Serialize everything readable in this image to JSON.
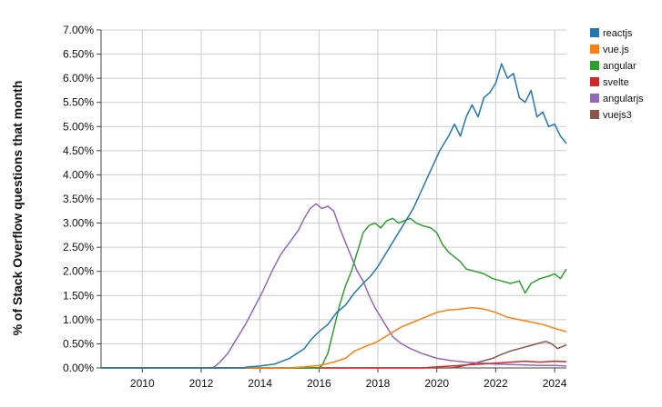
{
  "chart_data": {
    "type": "line",
    "title": "",
    "xlabel": "",
    "ylabel": "% of Stack Overflow questions that month",
    "xlim": [
      2008.6,
      2024.4
    ],
    "ylim": [
      0,
      7
    ],
    "x_ticks": [
      2010,
      2012,
      2014,
      2016,
      2018,
      2020,
      2022,
      2024
    ],
    "x_tick_labels": [
      "2010",
      "2012",
      "2014",
      "2016",
      "2018",
      "2020",
      "2022",
      "2024"
    ],
    "y_ticks": [
      0,
      0.5,
      1,
      1.5,
      2,
      2.5,
      3,
      3.5,
      4,
      4.5,
      5,
      5.5,
      6,
      6.5,
      7
    ],
    "y_tick_labels": [
      "0.00%",
      "0.50%",
      "1.00%",
      "1.50%",
      "2.00%",
      "2.50%",
      "3.00%",
      "3.50%",
      "4.00%",
      "4.50%",
      "5.00%",
      "5.50%",
      "6.00%",
      "6.50%",
      "7.00%"
    ],
    "grid": true,
    "legend_position": "right",
    "series": [
      {
        "name": "reactjs",
        "color": "#1f77b4",
        "points": [
          [
            2008.6,
            0.0
          ],
          [
            2013.4,
            0.0
          ],
          [
            2013.6,
            0.02
          ],
          [
            2014.0,
            0.04
          ],
          [
            2014.5,
            0.08
          ],
          [
            2015.0,
            0.2
          ],
          [
            2015.5,
            0.4
          ],
          [
            2015.75,
            0.6
          ],
          [
            2016.0,
            0.75
          ],
          [
            2016.3,
            0.9
          ],
          [
            2016.6,
            1.15
          ],
          [
            2016.9,
            1.3
          ],
          [
            2017.2,
            1.55
          ],
          [
            2017.5,
            1.75
          ],
          [
            2017.75,
            1.9
          ],
          [
            2018.0,
            2.1
          ],
          [
            2018.3,
            2.4
          ],
          [
            2018.6,
            2.7
          ],
          [
            2018.9,
            3.0
          ],
          [
            2019.2,
            3.3
          ],
          [
            2019.5,
            3.7
          ],
          [
            2019.8,
            4.1
          ],
          [
            2020.1,
            4.5
          ],
          [
            2020.4,
            4.8
          ],
          [
            2020.6,
            5.05
          ],
          [
            2020.8,
            4.8
          ],
          [
            2021.0,
            5.2
          ],
          [
            2021.2,
            5.45
          ],
          [
            2021.4,
            5.2
          ],
          [
            2021.6,
            5.6
          ],
          [
            2021.8,
            5.7
          ],
          [
            2022.0,
            5.9
          ],
          [
            2022.2,
            6.3
          ],
          [
            2022.4,
            6.0
          ],
          [
            2022.6,
            6.1
          ],
          [
            2022.8,
            5.6
          ],
          [
            2023.0,
            5.5
          ],
          [
            2023.2,
            5.75
          ],
          [
            2023.4,
            5.2
          ],
          [
            2023.6,
            5.3
          ],
          [
            2023.8,
            5.0
          ],
          [
            2024.0,
            5.05
          ],
          [
            2024.2,
            4.8
          ],
          [
            2024.4,
            4.65
          ]
        ]
      },
      {
        "name": "vue.js",
        "color": "#ff7f0e",
        "points": [
          [
            2008.6,
            0.0
          ],
          [
            2014.9,
            0.0
          ],
          [
            2015.5,
            0.02
          ],
          [
            2016.0,
            0.05
          ],
          [
            2016.5,
            0.12
          ],
          [
            2016.9,
            0.2
          ],
          [
            2017.2,
            0.35
          ],
          [
            2017.6,
            0.45
          ],
          [
            2018.0,
            0.55
          ],
          [
            2018.4,
            0.7
          ],
          [
            2018.8,
            0.85
          ],
          [
            2019.2,
            0.95
          ],
          [
            2019.6,
            1.05
          ],
          [
            2020.0,
            1.15
          ],
          [
            2020.4,
            1.2
          ],
          [
            2020.8,
            1.22
          ],
          [
            2021.2,
            1.25
          ],
          [
            2021.6,
            1.22
          ],
          [
            2022.0,
            1.15
          ],
          [
            2022.4,
            1.05
          ],
          [
            2022.8,
            1.0
          ],
          [
            2023.2,
            0.95
          ],
          [
            2023.6,
            0.9
          ],
          [
            2024.0,
            0.82
          ],
          [
            2024.4,
            0.75
          ]
        ]
      },
      {
        "name": "angular",
        "color": "#2ca02c",
        "points": [
          [
            2008.6,
            0.0
          ],
          [
            2016.0,
            0.0
          ],
          [
            2016.1,
            0.05
          ],
          [
            2016.3,
            0.3
          ],
          [
            2016.5,
            0.8
          ],
          [
            2016.7,
            1.3
          ],
          [
            2016.9,
            1.7
          ],
          [
            2017.1,
            2.0
          ],
          [
            2017.3,
            2.4
          ],
          [
            2017.5,
            2.8
          ],
          [
            2017.7,
            2.95
          ],
          [
            2017.9,
            3.0
          ],
          [
            2018.1,
            2.9
          ],
          [
            2018.3,
            3.05
          ],
          [
            2018.5,
            3.1
          ],
          [
            2018.7,
            3.0
          ],
          [
            2018.9,
            3.05
          ],
          [
            2019.1,
            3.1
          ],
          [
            2019.3,
            3.0
          ],
          [
            2019.5,
            2.95
          ],
          [
            2019.8,
            2.9
          ],
          [
            2020.0,
            2.8
          ],
          [
            2020.2,
            2.55
          ],
          [
            2020.4,
            2.4
          ],
          [
            2020.6,
            2.3
          ],
          [
            2020.8,
            2.2
          ],
          [
            2021.0,
            2.05
          ],
          [
            2021.3,
            2.0
          ],
          [
            2021.6,
            1.95
          ],
          [
            2021.9,
            1.85
          ],
          [
            2022.2,
            1.8
          ],
          [
            2022.5,
            1.75
          ],
          [
            2022.8,
            1.8
          ],
          [
            2023.0,
            1.55
          ],
          [
            2023.2,
            1.75
          ],
          [
            2023.5,
            1.85
          ],
          [
            2023.8,
            1.9
          ],
          [
            2024.0,
            1.95
          ],
          [
            2024.2,
            1.85
          ],
          [
            2024.4,
            2.05
          ]
        ]
      },
      {
        "name": "svelte",
        "color": "#d62728",
        "points": [
          [
            2008.6,
            0.0
          ],
          [
            2019.5,
            0.0
          ],
          [
            2020.0,
            0.02
          ],
          [
            2020.5,
            0.04
          ],
          [
            2021.0,
            0.06
          ],
          [
            2021.5,
            0.08
          ],
          [
            2022.0,
            0.1
          ],
          [
            2022.5,
            0.12
          ],
          [
            2023.0,
            0.14
          ],
          [
            2023.5,
            0.12
          ],
          [
            2024.0,
            0.14
          ],
          [
            2024.4,
            0.13
          ]
        ]
      },
      {
        "name": "angularjs",
        "color": "#9467bd",
        "points": [
          [
            2008.6,
            0.0
          ],
          [
            2012.4,
            0.0
          ],
          [
            2012.6,
            0.1
          ],
          [
            2012.9,
            0.3
          ],
          [
            2013.2,
            0.6
          ],
          [
            2013.5,
            0.9
          ],
          [
            2013.8,
            1.25
          ],
          [
            2014.1,
            1.6
          ],
          [
            2014.4,
            2.0
          ],
          [
            2014.7,
            2.35
          ],
          [
            2015.0,
            2.6
          ],
          [
            2015.3,
            2.85
          ],
          [
            2015.5,
            3.1
          ],
          [
            2015.7,
            3.3
          ],
          [
            2015.9,
            3.4
          ],
          [
            2016.1,
            3.3
          ],
          [
            2016.3,
            3.35
          ],
          [
            2016.5,
            3.25
          ],
          [
            2016.7,
            2.9
          ],
          [
            2016.9,
            2.6
          ],
          [
            2017.1,
            2.3
          ],
          [
            2017.3,
            2.0
          ],
          [
            2017.5,
            1.8
          ],
          [
            2017.7,
            1.5
          ],
          [
            2017.9,
            1.25
          ],
          [
            2018.1,
            1.05
          ],
          [
            2018.3,
            0.85
          ],
          [
            2018.5,
            0.65
          ],
          [
            2018.8,
            0.5
          ],
          [
            2019.1,
            0.4
          ],
          [
            2019.5,
            0.3
          ],
          [
            2020.0,
            0.2
          ],
          [
            2020.5,
            0.15
          ],
          [
            2021.0,
            0.12
          ],
          [
            2021.5,
            0.1
          ],
          [
            2022.0,
            0.08
          ],
          [
            2022.5,
            0.07
          ],
          [
            2023.0,
            0.06
          ],
          [
            2023.5,
            0.05
          ],
          [
            2024.0,
            0.05
          ],
          [
            2024.4,
            0.04
          ]
        ]
      },
      {
        "name": "vuejs3",
        "color": "#8c564b",
        "points": [
          [
            2008.6,
            0.0
          ],
          [
            2020.5,
            0.0
          ],
          [
            2020.8,
            0.03
          ],
          [
            2021.0,
            0.06
          ],
          [
            2021.3,
            0.1
          ],
          [
            2021.6,
            0.15
          ],
          [
            2021.9,
            0.2
          ],
          [
            2022.2,
            0.28
          ],
          [
            2022.5,
            0.35
          ],
          [
            2022.8,
            0.4
          ],
          [
            2023.1,
            0.45
          ],
          [
            2023.4,
            0.5
          ],
          [
            2023.7,
            0.55
          ],
          [
            2023.9,
            0.5
          ],
          [
            2024.1,
            0.4
          ],
          [
            2024.3,
            0.45
          ],
          [
            2024.4,
            0.48
          ]
        ]
      }
    ]
  }
}
